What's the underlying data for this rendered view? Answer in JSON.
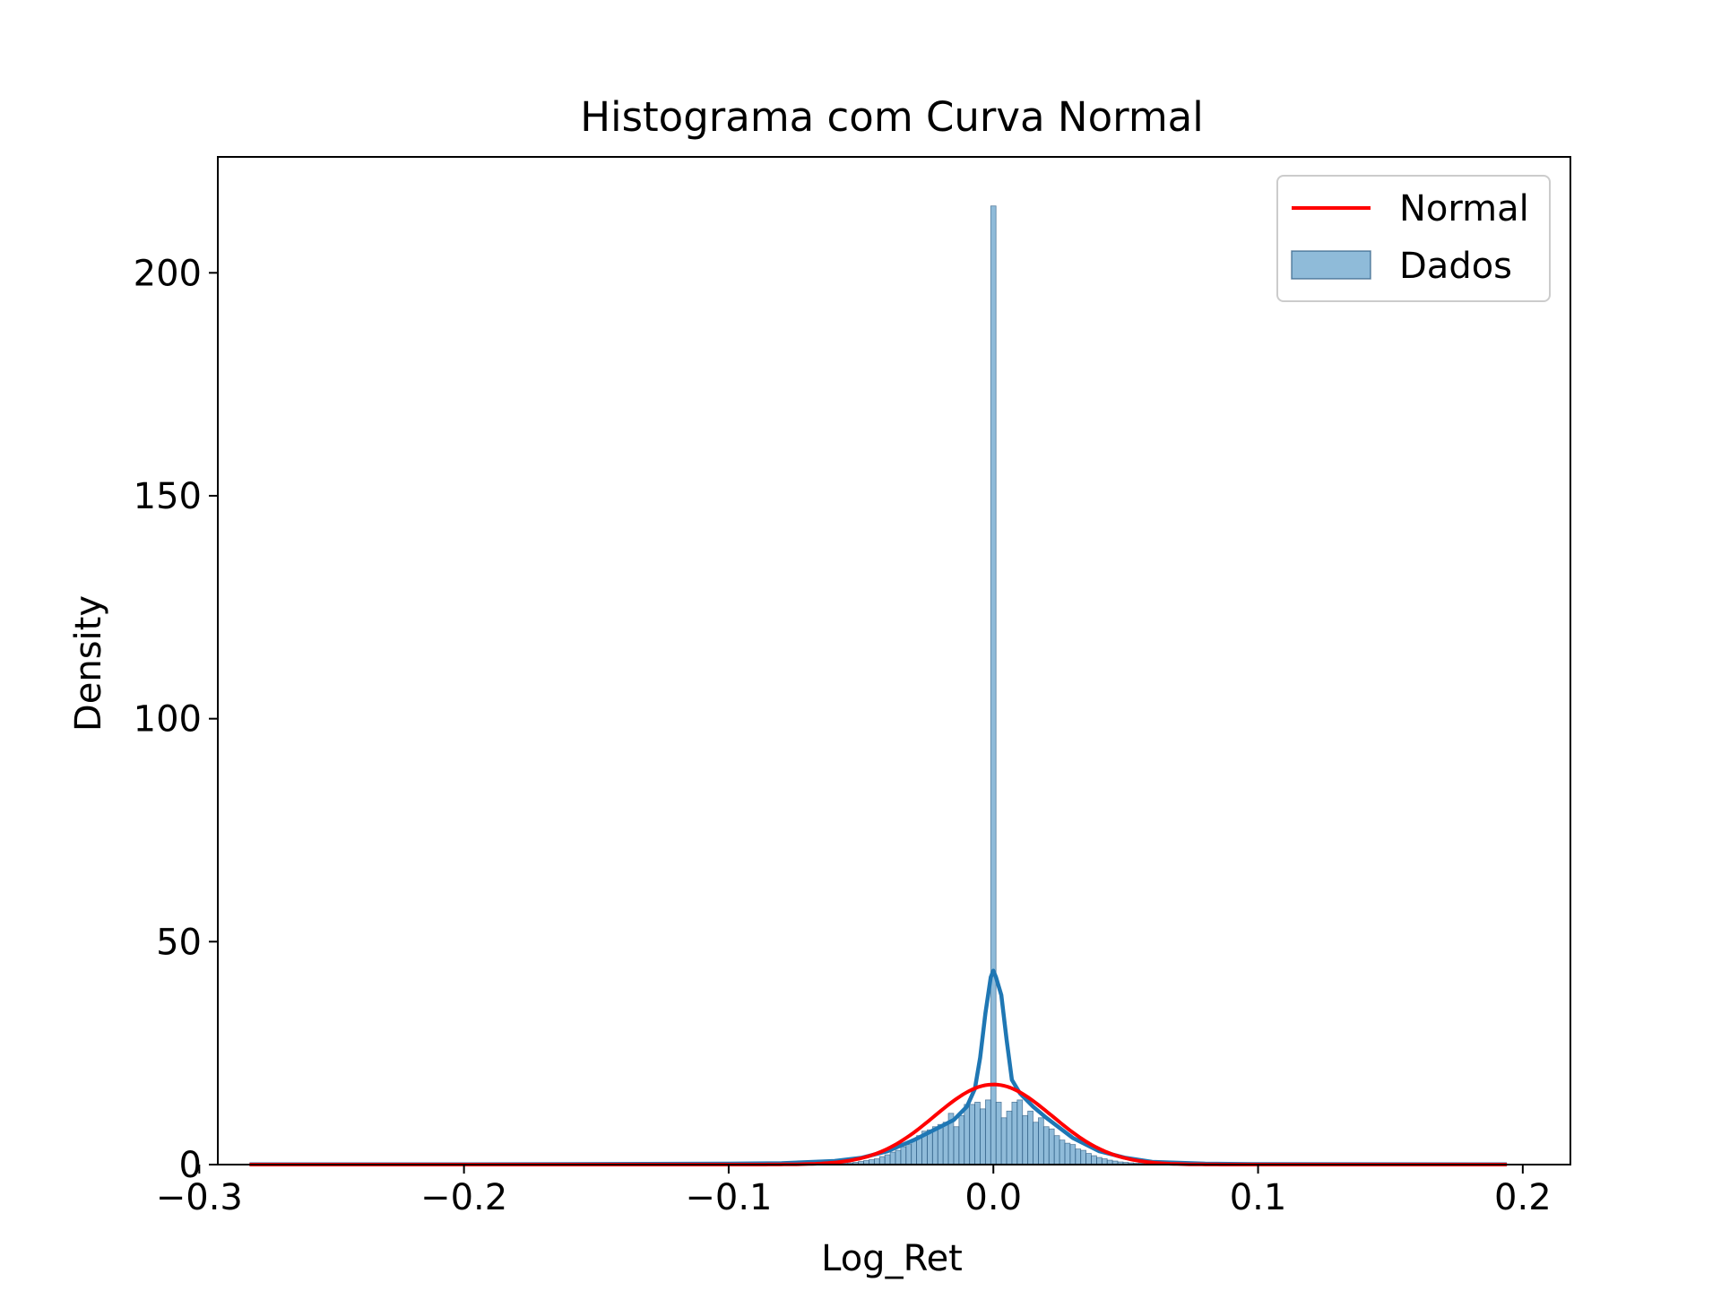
{
  "chart_data": {
    "type": "bar",
    "title": "Histograma com Curva Normal",
    "xlabel": "Log_Ret",
    "ylabel": "Density",
    "xlim": [
      -0.293,
      0.218
    ],
    "ylim": [
      0,
      226
    ],
    "xticks": [
      -0.3,
      -0.2,
      -0.1,
      0.0,
      0.1,
      0.2
    ],
    "xtick_labels": [
      "−0.3",
      "−0.2",
      "−0.1",
      "0.0",
      "0.1",
      "0.2"
    ],
    "yticks": [
      0,
      50,
      100,
      150,
      200
    ],
    "ytick_labels": [
      "0",
      "50",
      "100",
      "150",
      "200"
    ],
    "grid": false,
    "legend_position": "top-right",
    "histogram": {
      "name": "Dados",
      "color": "#1f77b4",
      "bins": [
        {
          "x": -0.06,
          "y": 0.2
        },
        {
          "x": -0.058,
          "y": 0.3
        },
        {
          "x": -0.056,
          "y": 0.3
        },
        {
          "x": -0.054,
          "y": 0.4
        },
        {
          "x": -0.052,
          "y": 0.5
        },
        {
          "x": -0.05,
          "y": 0.7
        },
        {
          "x": -0.048,
          "y": 0.9
        },
        {
          "x": -0.046,
          "y": 1.1
        },
        {
          "x": -0.044,
          "y": 1.3
        },
        {
          "x": -0.042,
          "y": 1.8
        },
        {
          "x": -0.04,
          "y": 2.2
        },
        {
          "x": -0.038,
          "y": 2.8
        },
        {
          "x": -0.036,
          "y": 3.2
        },
        {
          "x": -0.034,
          "y": 4.0
        },
        {
          "x": -0.032,
          "y": 4.5
        },
        {
          "x": -0.03,
          "y": 5.5
        },
        {
          "x": -0.028,
          "y": 6.5
        },
        {
          "x": -0.026,
          "y": 7.5
        },
        {
          "x": -0.024,
          "y": 7.8
        },
        {
          "x": -0.022,
          "y": 8.5
        },
        {
          "x": -0.02,
          "y": 9.0
        },
        {
          "x": -0.018,
          "y": 9.5
        },
        {
          "x": -0.016,
          "y": 11.5
        },
        {
          "x": -0.014,
          "y": 8.5
        },
        {
          "x": -0.012,
          "y": 11.0
        },
        {
          "x": -0.01,
          "y": 13.5
        },
        {
          "x": -0.008,
          "y": 13.5
        },
        {
          "x": -0.006,
          "y": 14.0
        },
        {
          "x": -0.004,
          "y": 12.5
        },
        {
          "x": -0.002,
          "y": 14.5
        },
        {
          "x": 0.0,
          "y": 215.0
        },
        {
          "x": 0.002,
          "y": 14.0
        },
        {
          "x": 0.004,
          "y": 10.5
        },
        {
          "x": 0.006,
          "y": 12.0
        },
        {
          "x": 0.008,
          "y": 14.0
        },
        {
          "x": 0.01,
          "y": 14.5
        },
        {
          "x": 0.012,
          "y": 11.0
        },
        {
          "x": 0.014,
          "y": 12.0
        },
        {
          "x": 0.016,
          "y": 9.5
        },
        {
          "x": 0.018,
          "y": 10.5
        },
        {
          "x": 0.02,
          "y": 8.5
        },
        {
          "x": 0.022,
          "y": 8.0
        },
        {
          "x": 0.024,
          "y": 6.5
        },
        {
          "x": 0.026,
          "y": 5.5
        },
        {
          "x": 0.028,
          "y": 4.8
        },
        {
          "x": 0.03,
          "y": 4.5
        },
        {
          "x": 0.032,
          "y": 3.5
        },
        {
          "x": 0.034,
          "y": 3.2
        },
        {
          "x": 0.036,
          "y": 2.5
        },
        {
          "x": 0.038,
          "y": 2.0
        },
        {
          "x": 0.04,
          "y": 1.6
        },
        {
          "x": 0.042,
          "y": 1.3
        },
        {
          "x": 0.044,
          "y": 1.0
        },
        {
          "x": 0.046,
          "y": 0.8
        },
        {
          "x": 0.048,
          "y": 0.6
        },
        {
          "x": 0.05,
          "y": 0.5
        },
        {
          "x": 0.052,
          "y": 0.4
        },
        {
          "x": 0.054,
          "y": 0.3
        },
        {
          "x": 0.056,
          "y": 0.3
        },
        {
          "x": 0.058,
          "y": 0.2
        },
        {
          "x": 0.06,
          "y": 0.2
        }
      ]
    },
    "kde": {
      "color": "#1f77b4",
      "x": [
        -0.281,
        -0.2,
        -0.1,
        -0.08,
        -0.06,
        -0.05,
        -0.04,
        -0.03,
        -0.02,
        -0.015,
        -0.01,
        -0.007,
        -0.005,
        -0.003,
        -0.001,
        0.0,
        0.001,
        0.003,
        0.005,
        0.007,
        0.01,
        0.015,
        0.02,
        0.03,
        0.04,
        0.05,
        0.06,
        0.08,
        0.1,
        0.194
      ],
      "y": [
        0.05,
        0.05,
        0.2,
        0.3,
        0.8,
        1.5,
        3.0,
        5.5,
        8.5,
        10.0,
        13.0,
        17.0,
        24.0,
        34.0,
        42.0,
        43.5,
        42.0,
        38.0,
        28.0,
        19.0,
        16.0,
        13.0,
        10.5,
        6.0,
        3.0,
        1.5,
        0.6,
        0.2,
        0.1,
        0.05
      ]
    },
    "normal_curve": {
      "name": "Normal",
      "color": "#ff0000",
      "mean": 0.0,
      "std": 0.0222,
      "x_start": -0.281,
      "x_end": 0.194
    }
  }
}
